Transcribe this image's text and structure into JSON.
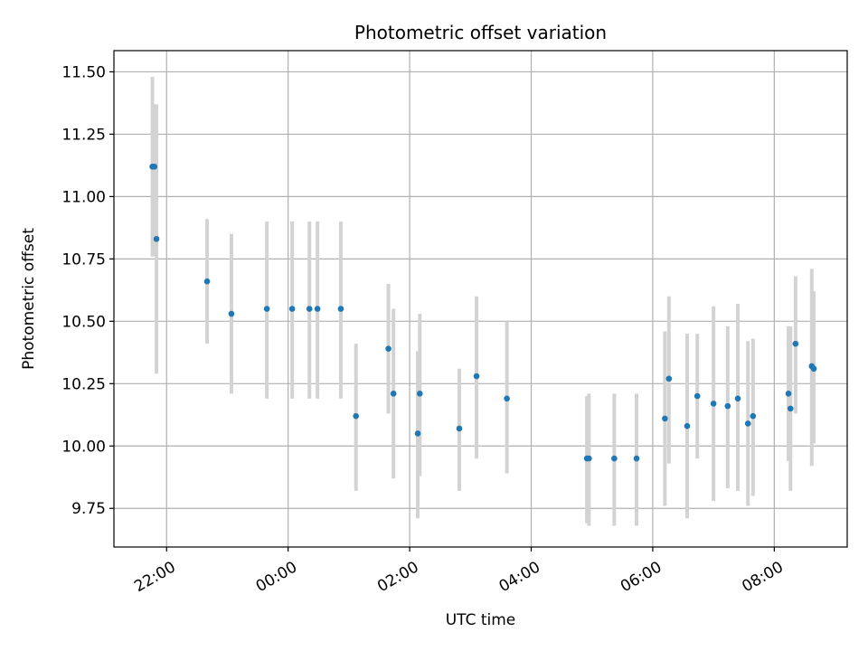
{
  "chart_data": {
    "type": "scatter",
    "title": "Photometric offset variation",
    "xlabel": "UTC time",
    "ylabel": "Photometric offset",
    "x_unit": "UTC hour (night of observation)",
    "xlim": [
      "21:08",
      "09:12"
    ],
    "ylim": [
      9.595,
      11.585
    ],
    "x_ticks": [
      "22:00",
      "00:00",
      "02:00",
      "04:00",
      "06:00",
      "08:00"
    ],
    "y_ticks": [
      "9.75",
      "10.00",
      "10.25",
      "10.50",
      "10.75",
      "11.00",
      "11.25",
      "11.50"
    ],
    "grid": true,
    "marker_color": "#1f77b4",
    "errorbar_color": "#d3d3d3",
    "series": [
      {
        "points": [
          {
            "t": "21:46",
            "y": 11.12,
            "lo": 10.76,
            "hi": 11.48
          },
          {
            "t": "21:48",
            "y": 11.12,
            "lo": 10.76,
            "hi": 11.37
          },
          {
            "t": "21:50",
            "y": 10.83,
            "lo": 10.29,
            "hi": 11.37
          },
          {
            "t": "22:40",
            "y": 10.66,
            "lo": 10.41,
            "hi": 10.91
          },
          {
            "t": "23:04",
            "y": 10.53,
            "lo": 10.21,
            "hi": 10.85
          },
          {
            "t": "23:39",
            "y": 10.55,
            "lo": 10.19,
            "hi": 10.9
          },
          {
            "t": "00:04",
            "y": 10.55,
            "lo": 10.19,
            "hi": 10.9
          },
          {
            "t": "00:21",
            "y": 10.55,
            "lo": 10.19,
            "hi": 10.9
          },
          {
            "t": "00:29",
            "y": 10.55,
            "lo": 10.19,
            "hi": 10.9
          },
          {
            "t": "00:52",
            "y": 10.55,
            "lo": 10.19,
            "hi": 10.9
          },
          {
            "t": "01:07",
            "y": 10.12,
            "lo": 9.82,
            "hi": 10.41
          },
          {
            "t": "01:39",
            "y": 10.39,
            "lo": 10.13,
            "hi": 10.65
          },
          {
            "t": "01:44",
            "y": 10.21,
            "lo": 9.87,
            "hi": 10.55
          },
          {
            "t": "02:08",
            "y": 10.05,
            "lo": 9.71,
            "hi": 10.38
          },
          {
            "t": "02:10",
            "y": 10.21,
            "lo": 9.88,
            "hi": 10.53
          },
          {
            "t": "02:49",
            "y": 10.07,
            "lo": 9.82,
            "hi": 10.31
          },
          {
            "t": "03:06",
            "y": 10.28,
            "lo": 9.95,
            "hi": 10.6
          },
          {
            "t": "03:36",
            "y": 10.19,
            "lo": 9.89,
            "hi": 10.5
          },
          {
            "t": "04:55",
            "y": 9.95,
            "lo": 9.69,
            "hi": 10.2
          },
          {
            "t": "04:57",
            "y": 9.95,
            "lo": 9.68,
            "hi": 10.21
          },
          {
            "t": "05:22",
            "y": 9.95,
            "lo": 9.68,
            "hi": 10.21
          },
          {
            "t": "05:44",
            "y": 9.95,
            "lo": 9.68,
            "hi": 10.21
          },
          {
            "t": "06:12",
            "y": 10.11,
            "lo": 9.76,
            "hi": 10.46
          },
          {
            "t": "06:16",
            "y": 10.27,
            "lo": 9.93,
            "hi": 10.6
          },
          {
            "t": "06:34",
            "y": 10.08,
            "lo": 9.71,
            "hi": 10.45
          },
          {
            "t": "06:44",
            "y": 10.2,
            "lo": 9.95,
            "hi": 10.45
          },
          {
            "t": "07:00",
            "y": 10.17,
            "lo": 9.78,
            "hi": 10.56
          },
          {
            "t": "07:14",
            "y": 10.16,
            "lo": 9.83,
            "hi": 10.48
          },
          {
            "t": "07:24",
            "y": 10.19,
            "lo": 9.82,
            "hi": 10.57
          },
          {
            "t": "07:34",
            "y": 10.09,
            "lo": 9.76,
            "hi": 10.42
          },
          {
            "t": "07:39",
            "y": 10.12,
            "lo": 9.8,
            "hi": 10.43
          },
          {
            "t": "08:14",
            "y": 10.21,
            "lo": 9.94,
            "hi": 10.48
          },
          {
            "t": "08:16",
            "y": 10.15,
            "lo": 9.82,
            "hi": 10.48
          },
          {
            "t": "08:21",
            "y": 10.41,
            "lo": 10.13,
            "hi": 10.68
          },
          {
            "t": "08:37",
            "y": 10.32,
            "lo": 9.92,
            "hi": 10.71
          },
          {
            "t": "08:39",
            "y": 10.31,
            "lo": 10.01,
            "hi": 10.62
          }
        ]
      }
    ]
  }
}
